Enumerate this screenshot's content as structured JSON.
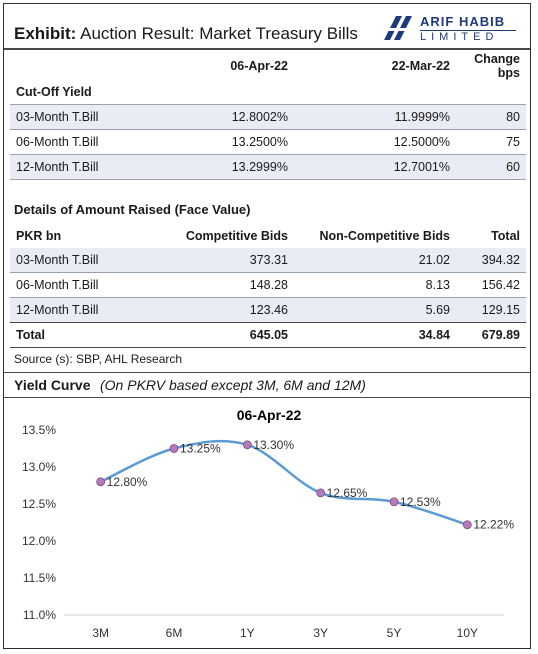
{
  "header": {
    "exhibit": "Exhibit:",
    "title": "Auction Result: Market Treasury Bills",
    "logo_line1": "ARIF HABIB",
    "logo_line2": "LIMITED"
  },
  "cutoff": {
    "heading": "Cut-Off Yield",
    "columns": [
      "06-Apr-22",
      "22-Mar-22",
      "Change bps"
    ],
    "rows": [
      {
        "label": "03-Month T.Bill",
        "a": "12.8002%",
        "b": "11.9999%",
        "c": "80"
      },
      {
        "label": "06-Month T.Bill",
        "a": "13.2500%",
        "b": "12.5000%",
        "c": "75"
      },
      {
        "label": "12-Month T.Bill",
        "a": "13.2999%",
        "b": "12.7001%",
        "c": "60"
      }
    ]
  },
  "raised": {
    "heading": "Details of Amount Raised (Face Value)",
    "columns": [
      "PKR bn",
      "Competitive Bids",
      "Non-Competitive Bids",
      "Total"
    ],
    "rows": [
      {
        "label": "03-Month T.Bill",
        "a": "373.31",
        "b": "21.02",
        "c": "394.32"
      },
      {
        "label": "06-Month T.Bill",
        "a": "148.28",
        "b": "8.13",
        "c": "156.42"
      },
      {
        "label": "12-Month T.Bill",
        "a": "123.46",
        "b": "5.69",
        "c": "129.15"
      }
    ],
    "total": {
      "label": "Total",
      "a": "645.05",
      "b": "34.84",
      "c": "679.89"
    }
  },
  "source": "Source (s): SBP, AHL Research",
  "curve": {
    "heading": "Yield Curve",
    "subheading": "(On PKRV based except 3M, 6M and 12M)"
  },
  "chart_data": {
    "type": "line",
    "title": "06-Apr-22",
    "categories": [
      "3M",
      "6M",
      "1Y",
      "3Y",
      "5Y",
      "10Y"
    ],
    "values": [
      12.8,
      13.25,
      13.3,
      12.65,
      12.53,
      12.22
    ],
    "data_labels": [
      "12.80%",
      "13.25%",
      "13.30%",
      "12.65%",
      "12.53%",
      "12.22%"
    ],
    "ylim": [
      11.0,
      13.5
    ],
    "yticks": [
      "11.0%",
      "11.5%",
      "12.0%",
      "12.5%",
      "13.0%",
      "13.5%"
    ],
    "line_color": "#5b9bd5",
    "marker_color": "#b57bb8"
  }
}
